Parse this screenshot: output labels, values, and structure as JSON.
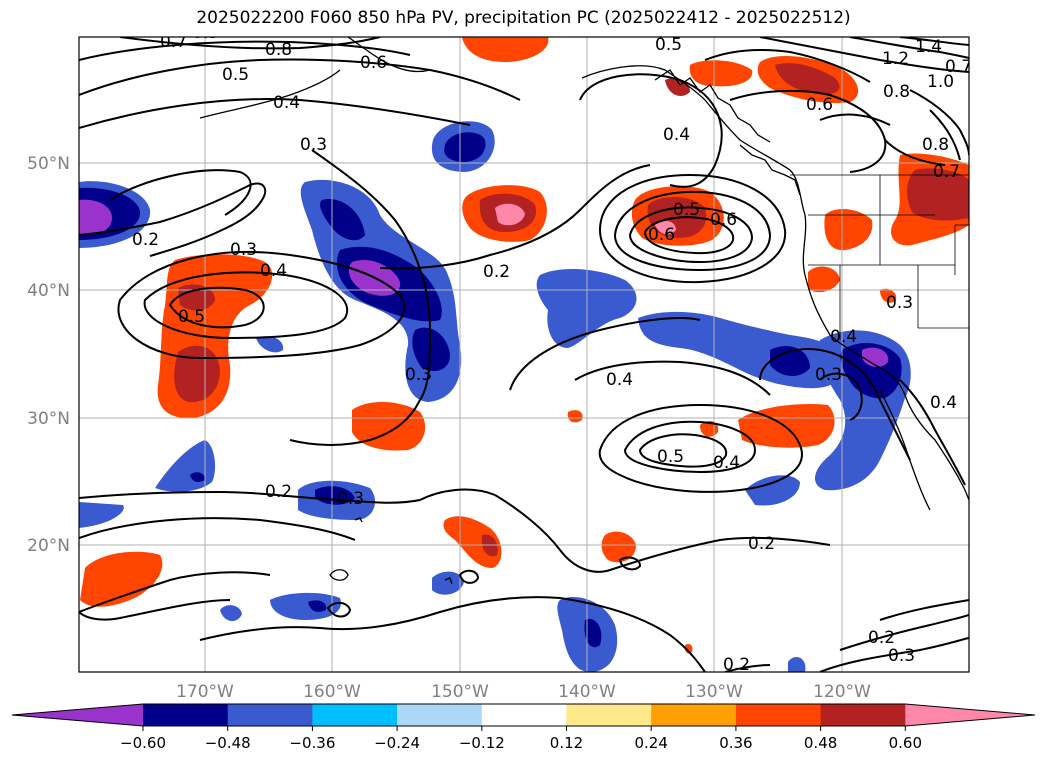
{
  "title": "2025022200 F060 850 hPa PV, precipitation PC (2025022412 - 2025022512)",
  "lat_labels": [
    "50°N",
    "40°N",
    "30°N",
    "20°N"
  ],
  "lon_labels": [
    "170°W",
    "160°W",
    "150°W",
    "140°W",
    "130°W",
    "120°W"
  ],
  "colorbar": {
    "ticks": [
      "−0.60",
      "−0.48",
      "−0.36",
      "−0.24",
      "−0.12",
      "0.12",
      "0.24",
      "0.36",
      "0.48",
      "0.60"
    ],
    "colors": [
      "#9933cc",
      "#00008b",
      "#3a5bd0",
      "#00bfff",
      "#add8f5",
      "#ffffff",
      "#ffe88a",
      "#ffa000",
      "#ff4500",
      "#b22222",
      "#ff88aa"
    ]
  },
  "contour_labels": [
    "0.7",
    "0.8",
    "0.5",
    "0.6",
    "0.4",
    "0.3",
    "0.5",
    "0.2",
    "0.3",
    "0.4",
    "0.5",
    "0.2",
    "0.5",
    "0.6",
    "0.4",
    "1.4",
    "1.2",
    "1.0",
    "0.8",
    "0.6",
    "0.8",
    "0.7",
    "0.4",
    "0.3",
    "0.3",
    "0.4",
    "0.5",
    "0.4",
    "0.2",
    "0.3",
    "0.2",
    "0.2",
    "0.2",
    "0.3",
    "0.3",
    "0.4",
    "0.5",
    "0.6",
    "0.7"
  ]
}
